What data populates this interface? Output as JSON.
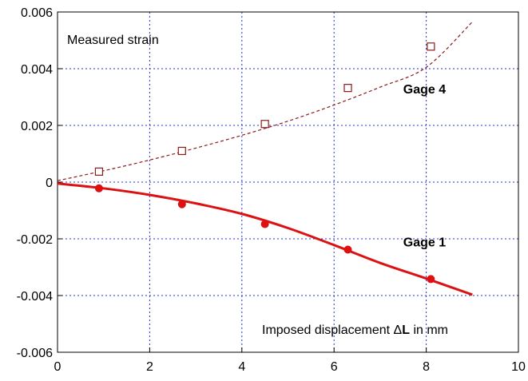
{
  "chart_data": {
    "type": "line",
    "title": "",
    "xlabel": "Imposed displacement ΔL in mm",
    "xlabel_parts": {
      "prefix": "Imposed displacement ",
      "symbol": "Δ",
      "bold": "L",
      "suffix": " in mm"
    },
    "ylabel": "",
    "annotation": "Measured strain",
    "xlim": [
      0,
      10
    ],
    "ylim": [
      -0.006,
      0.006
    ],
    "x_ticks": [
      0,
      2,
      4,
      6,
      8,
      10
    ],
    "x_tick_labels": [
      "0",
      "2",
      "4",
      "6",
      "8",
      "10"
    ],
    "y_ticks": [
      -0.006,
      -0.004,
      -0.002,
      0,
      0.002,
      0.004,
      0.006
    ],
    "y_tick_labels": [
      "-0.006",
      "-0.004",
      "-0.002",
      "0",
      "0.002",
      "0.004",
      "0.006"
    ],
    "grid": true,
    "series": [
      {
        "name": "Gage 4",
        "color": "#8b1a1a",
        "line_style": "dashed",
        "marker": "open-square",
        "curve": {
          "x": [
            0,
            1,
            2,
            3,
            4,
            5,
            6,
            7,
            8,
            9
          ],
          "y": [
            5e-05,
            0.0004,
            0.00078,
            0.0012,
            0.00165,
            0.00215,
            0.00272,
            0.00335,
            0.00405,
            0.00565
          ]
        },
        "points": {
          "x": [
            0.9,
            2.7,
            4.5,
            6.3,
            8.1
          ],
          "y": [
            0.00037,
            0.0011,
            0.00205,
            0.00332,
            0.00478
          ]
        }
      },
      {
        "name": "Gage 1",
        "color": "#dd1111",
        "line_style": "solid",
        "marker": "filled-circle",
        "curve": {
          "x": [
            0,
            1,
            2,
            3,
            4,
            5,
            6,
            7,
            8,
            9
          ],
          "y": [
            -5e-05,
            -0.00022,
            -0.00045,
            -0.00075,
            -0.00112,
            -0.00162,
            -0.00222,
            -0.00285,
            -0.0034,
            -0.00397
          ]
        },
        "points": {
          "x": [
            0.9,
            2.7,
            4.5,
            6.3,
            8.1
          ],
          "y": [
            -0.00022,
            -0.00078,
            -0.00148,
            -0.00238,
            -0.00342
          ]
        }
      }
    ],
    "series_labels": [
      {
        "text": "Gage 4",
        "x": 7.5,
        "y": 0.0033
      },
      {
        "text": "Gage 1",
        "x": 7.5,
        "y": -0.0021
      }
    ],
    "grid_color": "#2233cc"
  }
}
